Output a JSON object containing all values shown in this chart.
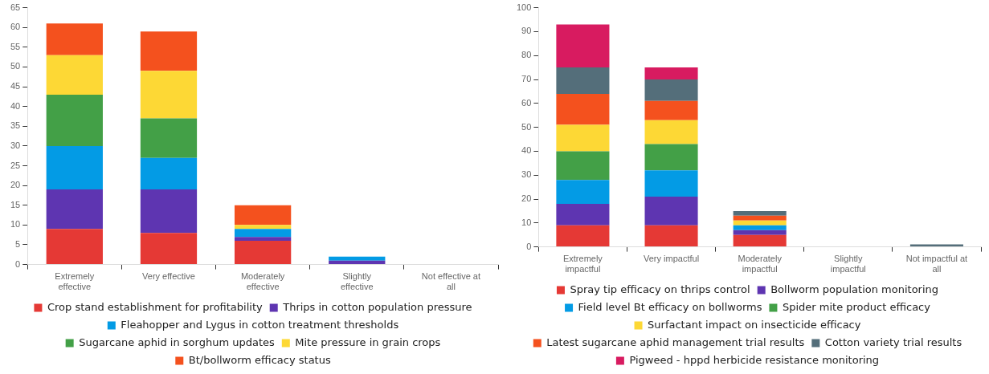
{
  "chart_data": [
    {
      "type": "bar",
      "stacked": true,
      "categories": [
        "Extremely effective",
        "Very effective",
        "Moderately effective",
        "Slightly effective",
        "Not effective at all"
      ],
      "ylim": [
        0,
        65
      ],
      "yticks": [
        0,
        5,
        10,
        15,
        20,
        25,
        30,
        35,
        40,
        45,
        50,
        55,
        60,
        65
      ],
      "grid": false,
      "legend": "bottom",
      "series": [
        {
          "name": "Crop stand establishment for profitability",
          "color": "#e53935",
          "values": [
            9,
            8,
            6,
            0,
            0
          ]
        },
        {
          "name": "Thrips in cotton population pressure",
          "color": "#5e35b1",
          "values": [
            10,
            11,
            1,
            1,
            0
          ]
        },
        {
          "name": "Fleahopper and Lygus in cotton treatment thresholds",
          "color": "#039be5",
          "values": [
            11,
            8,
            2,
            1,
            0
          ]
        },
        {
          "name": "Sugarcane aphid in sorghum updates",
          "color": "#43a047",
          "values": [
            13,
            10,
            0,
            0,
            0
          ]
        },
        {
          "name": "Mite pressure in grain crops",
          "color": "#fdd835",
          "values": [
            10,
            12,
            1,
            0,
            0
          ]
        },
        {
          "name": "Bt/bollworm efficacy status",
          "color": "#f4511e",
          "values": [
            8,
            10,
            5,
            0,
            0
          ]
        }
      ]
    },
    {
      "type": "bar",
      "stacked": true,
      "categories": [
        "Extremely impactful",
        "Very impactful",
        "Moderately impactful",
        "Slightly impactful",
        "Not impactful at all"
      ],
      "ylim": [
        0,
        100
      ],
      "yticks": [
        0,
        10,
        20,
        30,
        40,
        50,
        60,
        70,
        80,
        90,
        100
      ],
      "grid": false,
      "legend": "bottom",
      "series": [
        {
          "name": "Spray tip efficacy on thrips control",
          "color": "#e53935",
          "values": [
            9,
            9,
            5,
            0,
            0
          ]
        },
        {
          "name": "Bollworm population monitoring",
          "color": "#5e35b1",
          "values": [
            9,
            12,
            2,
            0,
            0
          ]
        },
        {
          "name": "Field level Bt efficacy on bollworms",
          "color": "#039be5",
          "values": [
            10,
            11,
            2,
            0,
            0
          ]
        },
        {
          "name": "Spider mite product efficacy",
          "color": "#43a047",
          "values": [
            12,
            11,
            0,
            0,
            0
          ]
        },
        {
          "name": "Surfactant impact on insecticide efficacy",
          "color": "#fdd835",
          "values": [
            11,
            10,
            2,
            0,
            0
          ]
        },
        {
          "name": "Latest sugarcane aphid management trial results",
          "color": "#f4511e",
          "values": [
            13,
            8,
            2,
            0,
            0
          ]
        },
        {
          "name": "Cotton variety trial results",
          "color": "#546e7a",
          "values": [
            11,
            9,
            2,
            0,
            1
          ]
        },
        {
          "name": "Pigweed - hppd herbicide resistance monitoring",
          "color": "#d81b60",
          "values": [
            18,
            5,
            0,
            0,
            0
          ]
        }
      ]
    }
  ]
}
